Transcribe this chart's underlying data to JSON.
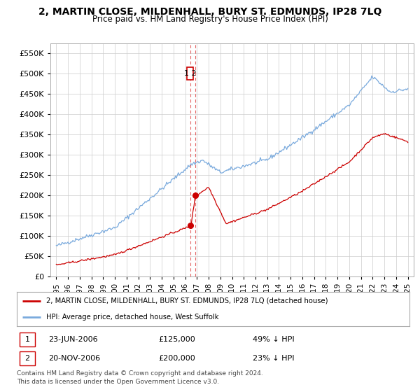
{
  "title": "2, MARTIN CLOSE, MILDENHALL, BURY ST. EDMUNDS, IP28 7LQ",
  "subtitle": "Price paid vs. HM Land Registry's House Price Index (HPI)",
  "hpi_color": "#7aaadd",
  "price_color": "#cc0000",
  "marker_color": "#cc0000",
  "vline_color": "#dd4444",
  "box_color": "#cc0000",
  "ylim": [
    0,
    575000
  ],
  "yticks": [
    0,
    50000,
    100000,
    150000,
    200000,
    250000,
    300000,
    350000,
    400000,
    450000,
    500000,
    550000
  ],
  "ytick_labels": [
    "£0",
    "£50K",
    "£100K",
    "£150K",
    "£200K",
    "£250K",
    "£300K",
    "£350K",
    "£400K",
    "£450K",
    "£500K",
    "£550K"
  ],
  "transaction1_date": 2006.47,
  "transaction1_price": 125000,
  "transaction2_date": 2006.88,
  "transaction2_price": 200000,
  "legend_line1": "2, MARTIN CLOSE, MILDENHALL, BURY ST. EDMUNDS, IP28 7LQ (detached house)",
  "legend_line2": "HPI: Average price, detached house, West Suffolk",
  "table_row1": [
    "1",
    "23-JUN-2006",
    "£125,000",
    "49% ↓ HPI"
  ],
  "table_row2": [
    "2",
    "20-NOV-2006",
    "£200,000",
    "23% ↓ HPI"
  ],
  "footer": "Contains HM Land Registry data © Crown copyright and database right 2024.\nThis data is licensed under the Open Government Licence v3.0.",
  "background_color": "#ffffff",
  "grid_color": "#cccccc"
}
